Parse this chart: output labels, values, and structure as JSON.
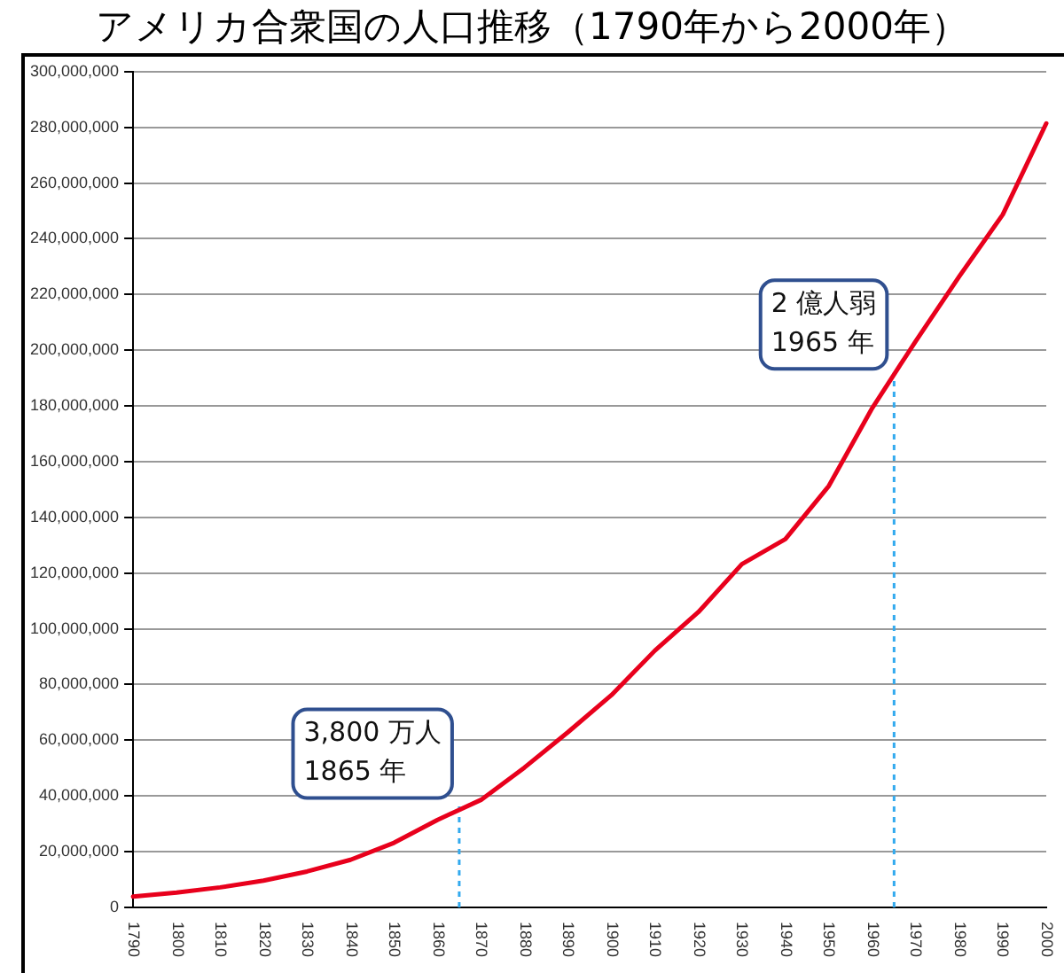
{
  "chart_data": {
    "type": "line",
    "title": "アメリカ合衆国の人口推移（1790年から2000年）",
    "x": [
      1790,
      1800,
      1810,
      1820,
      1830,
      1840,
      1850,
      1860,
      1870,
      1880,
      1890,
      1900,
      1910,
      1920,
      1930,
      1940,
      1950,
      1960,
      1970,
      1980,
      1990,
      2000
    ],
    "series": [
      {
        "color": "#e8001c",
        "values": [
          3900000,
          5300000,
          7200000,
          9600000,
          12900000,
          17100000,
          23200000,
          31400000,
          38600000,
          50200000,
          62900000,
          76200000,
          92200000,
          106000000,
          123200000,
          132200000,
          151300000,
          179300000,
          203300000,
          226500000,
          248700000,
          281400000
        ]
      }
    ],
    "xlim": [
      1790,
      2000
    ],
    "xticks": [
      1790,
      1800,
      1810,
      1820,
      1830,
      1840,
      1850,
      1860,
      1870,
      1880,
      1890,
      1900,
      1910,
      1920,
      1930,
      1940,
      1950,
      1960,
      1970,
      1980,
      1990,
      2000
    ],
    "ylim": [
      0,
      300000000
    ],
    "yticks": [
      0,
      {
        "value": 20000000,
        "label": "20,000,000"
      },
      {
        "value": 40000000,
        "label": "40,000,000"
      },
      {
        "value": 60000000,
        "label": "60,000,000"
      },
      {
        "value": 80000000,
        "label": "80,000,000"
      },
      {
        "value": 100000000,
        "label": "100,000,000"
      },
      {
        "value": 120000000,
        "label": "120,000,000"
      },
      {
        "value": 140000000,
        "label": "140,000,000"
      },
      {
        "value": 160000000,
        "label": "160,000,000"
      },
      {
        "value": 180000000,
        "label": "180,000,000"
      },
      {
        "value": 200000000,
        "label": "200,000,000"
      },
      {
        "value": 220000000,
        "label": "220,000,000"
      },
      {
        "value": 240000000,
        "label": "240,000,000"
      },
      {
        "value": 260000000,
        "label": "260,000,000"
      },
      {
        "value": 280000000,
        "label": "280,000,000"
      },
      {
        "value": 300000000,
        "label": "300,000,000"
      }
    ],
    "grid": "y",
    "legend": false,
    "marker": "none",
    "line_style": "solid",
    "ref_lines": [
      {
        "axis": "x",
        "value": 1865,
        "label": null,
        "color": "#33aaee",
        "line_style": "dotted"
      },
      {
        "axis": "x",
        "value": 1965,
        "label": null,
        "color": "#33aaee",
        "line_style": "dotted"
      }
    ],
    "annotations": [
      {
        "text": "3,800 万人\n1865 年",
        "x": 1865,
        "y": 38000000
      },
      {
        "text": "2 億人弱\n1965 年",
        "x": 1965,
        "y": 192000000
      }
    ]
  }
}
